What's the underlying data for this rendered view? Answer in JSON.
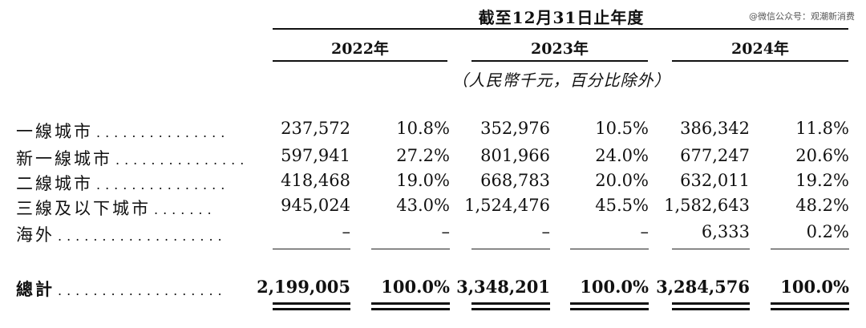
{
  "header": {
    "period": "截至12月31日止年度",
    "watermark": "@微信公众号：观潮新消费",
    "years": [
      "2022年",
      "2023年",
      "2024年"
    ],
    "unit_note": "（人民幣千元，百分比除外）"
  },
  "rows": [
    {
      "label": "一線城市",
      "leader": "...............",
      "values": [
        "237,572",
        "10.8%",
        "352,976",
        "10.5%",
        "386,342",
        "11.8%"
      ]
    },
    {
      "label": "新一線城市",
      "leader": "...............",
      "values": [
        "597,941",
        "27.2%",
        "801,966",
        "24.0%",
        "677,247",
        "20.6%"
      ]
    },
    {
      "label": "二線城市",
      "leader": "...............",
      "values": [
        "418,468",
        "19.0%",
        "668,783",
        "20.0%",
        "632,011",
        "19.2%"
      ]
    },
    {
      "label": "三線及以下城市",
      "leader": ".......",
      "values": [
        "945,024",
        "43.0%",
        "1,524,476",
        "45.5%",
        "1,582,643",
        "48.2%"
      ]
    },
    {
      "label": "海外",
      "leader": "...................",
      "values": [
        "–",
        "–",
        "–",
        "–",
        "6,333",
        "0.2%"
      ]
    }
  ],
  "total": {
    "label": "總計",
    "leader": "...................",
    "values": [
      "2,199,005",
      "100.0%",
      "3,348,201",
      "100.0%",
      "3,284,576",
      "100.0%"
    ]
  }
}
